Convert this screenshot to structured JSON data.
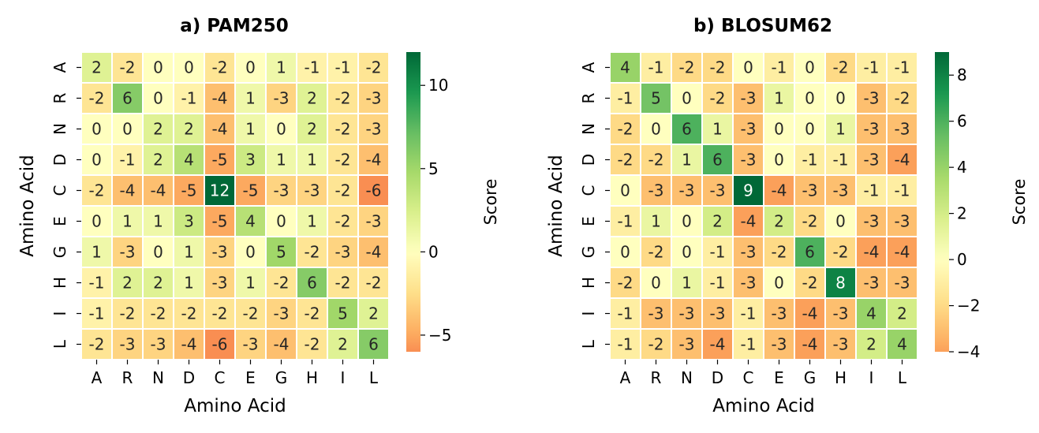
{
  "chart_data": [
    {
      "type": "heatmap",
      "title": "a) PAM250",
      "xlabel": "Amino Acid",
      "ylabel": "Amino Acid",
      "x_categories": [
        "A",
        "R",
        "N",
        "D",
        "C",
        "E",
        "G",
        "H",
        "I",
        "L"
      ],
      "y_categories": [
        "A",
        "R",
        "N",
        "D",
        "C",
        "E",
        "G",
        "H",
        "I",
        "L"
      ],
      "values": [
        [
          2,
          -2,
          0,
          0,
          -2,
          0,
          1,
          -1,
          -1,
          -2
        ],
        [
          -2,
          6,
          0,
          -1,
          -4,
          1,
          -3,
          2,
          -2,
          -3
        ],
        [
          0,
          0,
          2,
          2,
          -4,
          1,
          0,
          2,
          -2,
          -3
        ],
        [
          0,
          -1,
          2,
          4,
          -5,
          3,
          1,
          1,
          -2,
          -4
        ],
        [
          -2,
          -4,
          -4,
          -5,
          12,
          -5,
          -3,
          -3,
          -2,
          -6
        ],
        [
          0,
          1,
          1,
          3,
          -5,
          4,
          0,
          1,
          -2,
          -3
        ],
        [
          1,
          -3,
          0,
          1,
          -3,
          0,
          5,
          -2,
          -3,
          -4
        ],
        [
          -1,
          2,
          2,
          1,
          -3,
          1,
          -2,
          6,
          -2,
          -2
        ],
        [
          -1,
          -2,
          -2,
          -2,
          -2,
          -2,
          -3,
          -2,
          5,
          2
        ],
        [
          -2,
          -3,
          -3,
          -4,
          -6,
          -3,
          -4,
          -2,
          2,
          6
        ]
      ],
      "colorbar": {
        "label": "Score",
        "vmin": -6,
        "vmax": 12,
        "ticks": [
          -5,
          0,
          5,
          10
        ],
        "tick_labels": [
          "−5",
          "0",
          "5",
          "10"
        ]
      },
      "colormap": "RdYlGn (center 0)"
    },
    {
      "type": "heatmap",
      "title": "b) BLOSUM62",
      "xlabel": "Amino Acid",
      "ylabel": "Amino Acid",
      "x_categories": [
        "A",
        "R",
        "N",
        "D",
        "C",
        "E",
        "G",
        "H",
        "I",
        "L"
      ],
      "y_categories": [
        "A",
        "R",
        "N",
        "D",
        "C",
        "E",
        "G",
        "H",
        "I",
        "L"
      ],
      "values": [
        [
          4,
          -1,
          -2,
          -2,
          0,
          -1,
          0,
          -2,
          -1,
          -1
        ],
        [
          -1,
          5,
          0,
          -2,
          -3,
          1,
          0,
          0,
          -3,
          -2
        ],
        [
          -2,
          0,
          6,
          1,
          -3,
          0,
          0,
          1,
          -3,
          -3
        ],
        [
          -2,
          -2,
          1,
          6,
          -3,
          0,
          -1,
          -1,
          -3,
          -4
        ],
        [
          0,
          -3,
          -3,
          -3,
          9,
          -4,
          -3,
          -3,
          -1,
          -1
        ],
        [
          -1,
          1,
          0,
          2,
          -4,
          2,
          -2,
          0,
          -3,
          -3
        ],
        [
          0,
          -2,
          0,
          -1,
          -3,
          -2,
          6,
          -2,
          -4,
          -4
        ],
        [
          -2,
          0,
          1,
          -1,
          -3,
          0,
          -2,
          8,
          -3,
          -3
        ],
        [
          -1,
          -3,
          -3,
          -3,
          -1,
          -3,
          -4,
          -3,
          4,
          2
        ],
        [
          -1,
          -2,
          -3,
          -4,
          -1,
          -3,
          -4,
          -3,
          2,
          4
        ]
      ],
      "colorbar": {
        "label": "Score",
        "vmin": -4,
        "vmax": 9,
        "ticks": [
          -4,
          -2,
          0,
          2,
          4,
          6,
          8
        ],
        "tick_labels": [
          "−4",
          "−2",
          "0",
          "2",
          "4",
          "6",
          "8"
        ]
      },
      "colormap": "RdYlGn (center 0)"
    }
  ]
}
